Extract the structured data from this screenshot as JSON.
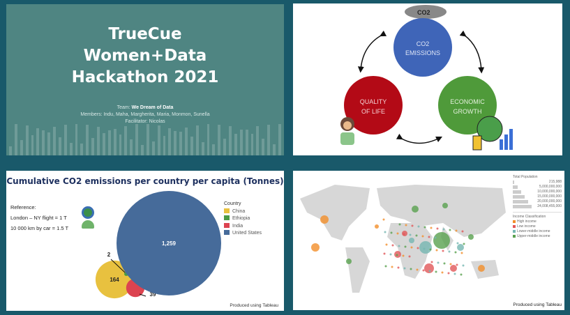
{
  "slide1": {
    "title_lines": [
      "TrueCue",
      "Women+Data",
      "Hackathon 2021"
    ],
    "team_label": "Team:",
    "team": "We Dream of Data",
    "members": "Members: Indu, Maha, Margherita, Maria, Monmon, Sunella",
    "facilitator": "Facilitator: Nicolas"
  },
  "slide2": {
    "co2": [
      "CO2",
      "EMISSIONS"
    ],
    "quality": [
      "QUALITY",
      "OF LIFE"
    ],
    "economic": [
      "ECONOMIC",
      "GROWTH"
    ],
    "factory_label": "CO2",
    "colors": {
      "co2": "#3f65b8",
      "quality": "#b30a16",
      "economic": "#4f9a3a"
    }
  },
  "slide3": {
    "title": "Cumulative CO2 emissions per country per capita (Tonnes)",
    "reference": [
      "Reference:",
      "London – NY flight = 1 T",
      "10 000 km by car = 1.5 T"
    ],
    "legend_title": "Country",
    "countries": [
      {
        "name": "China",
        "value": 164,
        "label": "164",
        "color": "#e8c13f"
      },
      {
        "name": "Ethiopia",
        "value": 2,
        "label": "2",
        "color": "#4b9a44"
      },
      {
        "name": "India",
        "value": 39,
        "label": "39",
        "color": "#dc4350"
      },
      {
        "name": "United States",
        "value": 1259,
        "label": "1,259",
        "color": "#466b9a"
      }
    ],
    "footer": "Produced using Tableau"
  },
  "slide4": {
    "pop_title": "Total Population",
    "pop_sizes": [
      "215,988",
      "5,000,000,000",
      "10,000,000,000",
      "15,000,000,000",
      "20,000,000,000",
      "24,008,455,000"
    ],
    "income_title": "Income Classification",
    "income": [
      {
        "label": "High income",
        "color": "#f28e2b"
      },
      {
        "label": "Low income",
        "color": "#e15759"
      },
      {
        "label": "Lower-middle income",
        "color": "#76b7b2"
      },
      {
        "label": "Upper-middle income",
        "color": "#59a14f"
      }
    ],
    "footer": "Produced using Tableau"
  }
}
